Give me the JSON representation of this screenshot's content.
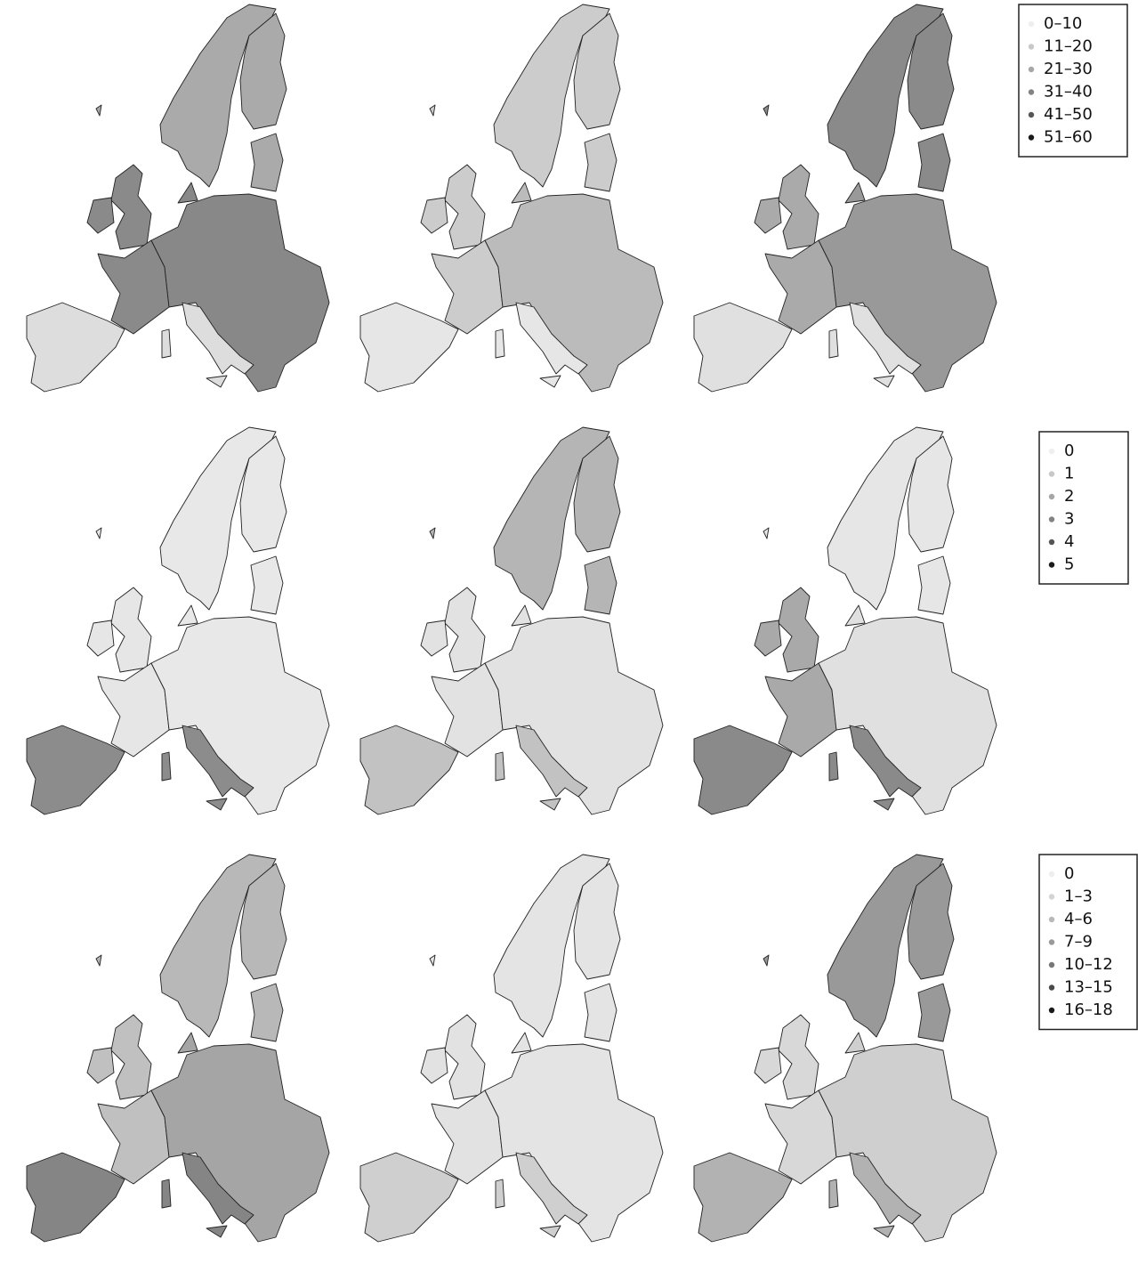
{
  "legends": [
    {
      "entries": [
        {
          "label": "0–10",
          "color": "#eeeeee"
        },
        {
          "label": "11–20",
          "color": "#c8c8c8"
        },
        {
          "label": "21–30",
          "color": "#a6a6a6"
        },
        {
          "label": "31–40",
          "color": "#838383"
        },
        {
          "label": "41–50",
          "color": "#555555"
        },
        {
          "label": "51–60",
          "color": "#1a1a1a"
        }
      ]
    },
    {
      "entries": [
        {
          "label": "0",
          "color": "#eeeeee"
        },
        {
          "label": "1",
          "color": "#c8c8c8"
        },
        {
          "label": "2",
          "color": "#a6a6a6"
        },
        {
          "label": "3",
          "color": "#838383"
        },
        {
          "label": "4",
          "color": "#555555"
        },
        {
          "label": "5",
          "color": "#1a1a1a"
        }
      ]
    },
    {
      "entries": [
        {
          "label": "0",
          "color": "#eeeeee"
        },
        {
          "label": "1–3",
          "color": "#d4d4d4"
        },
        {
          "label": "4–6",
          "color": "#b8b8b8"
        },
        {
          "label": "7–9",
          "color": "#999999"
        },
        {
          "label": "10–12",
          "color": "#777777"
        },
        {
          "label": "13–15",
          "color": "#4a4a4a"
        },
        {
          "label": "16–18",
          "color": "#1a1a1a"
        }
      ]
    }
  ]
}
